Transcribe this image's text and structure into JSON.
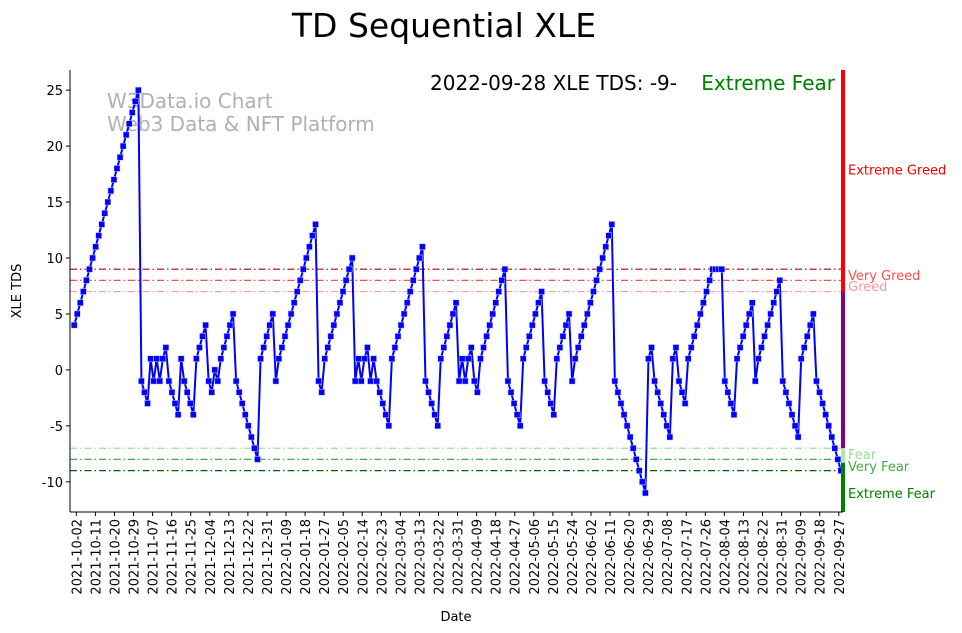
{
  "chart_data": {
    "type": "line",
    "title": "TD Sequential XLE",
    "xlabel": "Date",
    "ylabel": "XLE TDS",
    "annotation": {
      "text": "2022-09-28 XLE TDS: -9-",
      "status": "Extreme Fear",
      "status_color": "#008000"
    },
    "watermark": [
      "W3Data.io Chart",
      "Web3 Data & NFT Platform"
    ],
    "xlim": [
      "2021-09-29",
      "2022-09-29"
    ],
    "ylim": [
      -12.7,
      26.8
    ],
    "yticks": [
      -10,
      -5,
      0,
      5,
      10,
      15,
      20,
      25
    ],
    "xticks": [
      "2021-10-02",
      "2021-10-11",
      "2021-10-20",
      "2021-10-29",
      "2021-11-07",
      "2021-11-16",
      "2021-11-25",
      "2021-12-04",
      "2021-12-13",
      "2021-12-22",
      "2021-12-31",
      "2022-01-09",
      "2022-01-18",
      "2022-01-27",
      "2022-02-05",
      "2022-02-14",
      "2022-02-23",
      "2022-03-04",
      "2022-03-13",
      "2022-03-22",
      "2022-03-31",
      "2022-04-09",
      "2022-04-18",
      "2022-04-27",
      "2022-05-06",
      "2022-05-15",
      "2022-05-24",
      "2022-06-02",
      "2022-06-11",
      "2022-06-20",
      "2022-06-29",
      "2022-07-08",
      "2022-07-17",
      "2022-07-26",
      "2022-08-04",
      "2022-08-13",
      "2022-08-22",
      "2022-08-31",
      "2022-09-09",
      "2022-09-18",
      "2022-09-27"
    ],
    "series": [
      {
        "name": "XLE TDS",
        "color": "#0000ff",
        "start_date": "2021-10-01",
        "end_date": "2022-09-28",
        "values": [
          4,
          5,
          6,
          7,
          8,
          9,
          10,
          11,
          12,
          13,
          14,
          15,
          16,
          17,
          18,
          19,
          20,
          21,
          22,
          23,
          24,
          25,
          -1,
          -2,
          -3,
          1,
          -1,
          1,
          -1,
          1,
          2,
          -1,
          -2,
          -3,
          -4,
          1,
          -1,
          -2,
          -3,
          -4,
          1,
          2,
          3,
          4,
          -1,
          -2,
          0,
          -1,
          1,
          2,
          3,
          4,
          5,
          -1,
          -2,
          -3,
          -4,
          -5,
          -6,
          -7,
          -8,
          1,
          2,
          3,
          4,
          5,
          -1,
          1,
          2,
          3,
          4,
          5,
          6,
          7,
          8,
          9,
          10,
          11,
          12,
          13,
          -1,
          -2,
          1,
          2,
          3,
          4,
          5,
          6,
          7,
          8,
          9,
          10,
          -1,
          1,
          -1,
          1,
          2,
          -1,
          1,
          -1,
          -2,
          -3,
          -4,
          -5,
          1,
          2,
          3,
          4,
          5,
          6,
          7,
          8,
          9,
          10,
          11,
          -1,
          -2,
          -3,
          -4,
          -5,
          1,
          2,
          3,
          4,
          5,
          6,
          -1,
          1,
          -1,
          1,
          2,
          -1,
          -2,
          1,
          2,
          3,
          4,
          5,
          6,
          7,
          8,
          9,
          -1,
          -2,
          -3,
          -4,
          -5,
          1,
          2,
          3,
          4,
          5,
          6,
          7,
          -1,
          -2,
          -3,
          -4,
          1,
          2,
          3,
          4,
          5,
          -1,
          1,
          2,
          3,
          4,
          5,
          6,
          7,
          8,
          9,
          10,
          11,
          12,
          13,
          -1,
          -2,
          -3,
          -4,
          -5,
          -6,
          -7,
          -8,
          -9,
          -10,
          -11,
          1,
          2,
          -1,
          -2,
          -3,
          -4,
          -5,
          -6,
          1,
          2,
          -1,
          -2,
          -3,
          1,
          2,
          3,
          4,
          5,
          6,
          7,
          8,
          9,
          9,
          9,
          9,
          -1,
          -2,
          -3,
          -4,
          1,
          2,
          3,
          4,
          5,
          6,
          -1,
          1,
          2,
          3,
          4,
          5,
          6,
          7,
          8,
          -1,
          -2,
          -3,
          -4,
          -5,
          -6,
          1,
          2,
          3,
          4,
          5,
          -1,
          -2,
          -3,
          -4,
          -5,
          -6,
          -7,
          -8,
          -9
        ]
      }
    ],
    "thresholds": [
      {
        "label": "Very Greed",
        "value": 9,
        "color": "#b30000",
        "label_value": 8.5
      },
      {
        "label": "",
        "value": 8,
        "color": "#ff4d4d"
      },
      {
        "label": "Greed",
        "value": 7,
        "color": "#ff9999",
        "label_value": 7.5
      },
      {
        "label": "Fear",
        "value": -7,
        "color": "#99dd99",
        "label_value": -7.5
      },
      {
        "label": "",
        "value": -8,
        "color": "#44aa44"
      },
      {
        "label": "Very Fear",
        "value": -9,
        "color": "#006400",
        "label_value": -8.6
      }
    ],
    "zone_labels": [
      {
        "label": "Extreme Greed",
        "value": 17.9,
        "color": "#ff0000"
      },
      {
        "label": "Very Greed",
        "value": 8.5,
        "color": "#ff4d4d"
      },
      {
        "label": "Greed",
        "value": 7.5,
        "color": "#ff9999"
      },
      {
        "label": "Fear",
        "value": -7.5,
        "color": "#99dd99"
      },
      {
        "label": "Very Fear",
        "value": -8.6,
        "color": "#44aa44"
      },
      {
        "label": "Extreme Fear",
        "value": -11,
        "color": "#008000"
      }
    ],
    "zones": [
      {
        "from": 26.8,
        "to": 7,
        "color": "#ff0000"
      },
      {
        "from": 7,
        "to": -7,
        "color": "#800080"
      },
      {
        "from": -7,
        "to": -8.3,
        "color": "#b3e6b3"
      },
      {
        "from": -8.3,
        "to": -12.7,
        "color": "#008000"
      }
    ]
  }
}
